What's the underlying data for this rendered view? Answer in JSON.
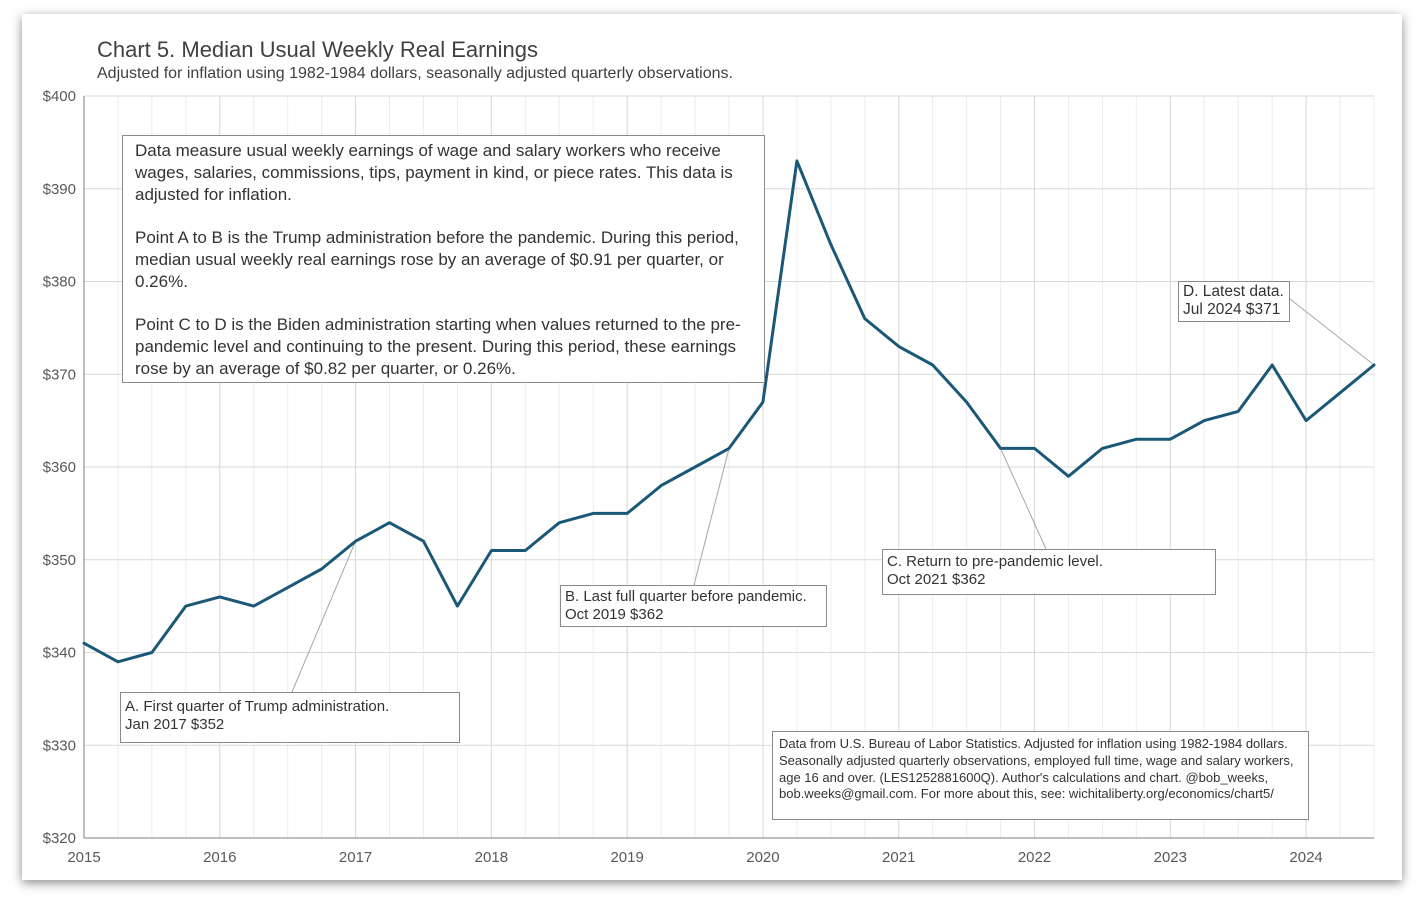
{
  "chart_data": {
    "type": "line",
    "title": "Chart 5. Median Usual Weekly Real Earnings",
    "subtitle": "Adjusted for inflation using 1982-1984 dollars, seasonally adjusted quarterly observations.",
    "xlabel": "",
    "ylabel": "",
    "x_ticks": [
      "2015",
      "2016",
      "2017",
      "2018",
      "2019",
      "2020",
      "2021",
      "2022",
      "2023",
      "2024"
    ],
    "y_ticks": [
      "$320",
      "$330",
      "$340",
      "$350",
      "$360",
      "$370",
      "$380",
      "$390",
      "$400"
    ],
    "ylim": [
      320,
      400
    ],
    "xlim": [
      "2015-01",
      "2024-07"
    ],
    "grid": true,
    "line_color": "#1b5878",
    "series": [
      {
        "name": "",
        "x": [
          "2015-01",
          "2015-04",
          "2015-07",
          "2015-10",
          "2016-01",
          "2016-04",
          "2016-07",
          "2016-10",
          "2017-01",
          "2017-04",
          "2017-07",
          "2017-10",
          "2018-01",
          "2018-04",
          "2018-07",
          "2018-10",
          "2019-01",
          "2019-04",
          "2019-07",
          "2019-10",
          "2020-01",
          "2020-04",
          "2020-07",
          "2020-10",
          "2021-01",
          "2021-04",
          "2021-07",
          "2021-10",
          "2022-01",
          "2022-04",
          "2022-07",
          "2022-10",
          "2023-01",
          "2023-04",
          "2023-07",
          "2023-10",
          "2024-01",
          "2024-04",
          "2024-07"
        ],
        "values": [
          341,
          339,
          340,
          345,
          346,
          345,
          347,
          349,
          352,
          354,
          352,
          345,
          351,
          351,
          354,
          355,
          355,
          358,
          360,
          362,
          367,
          393,
          384,
          376,
          373,
          371,
          367,
          362,
          362,
          359,
          362,
          363,
          363,
          365,
          366,
          371,
          365,
          368,
          371
        ]
      }
    ],
    "annotations": [
      {
        "id": "A",
        "line1": "A. First quarter of Trump  administration.",
        "line2": "Jan 2017  $352",
        "x": "2017-01",
        "y": 352
      },
      {
        "id": "B",
        "line1": "B. Last full  quarter  before pandemic.",
        "line2": "Oct 2019  $362",
        "x": "2019-10",
        "y": 362
      },
      {
        "id": "C",
        "line1": "C. Return  to pre-pandemic level.",
        "line2": "Oct 2021  $362",
        "x": "2021-10",
        "y": 362
      },
      {
        "id": "D",
        "line1": "D. Latest data.",
        "line2": "Jul 2024  $371",
        "x": "2024-07",
        "y": 371
      }
    ]
  },
  "note": {
    "p1": "Data measure usual weekly earnings of wage and salary workers who receive wages, salaries, commissions, tips, payment in kind, or piece rates. This data is adjusted for inflation.",
    "p2": "Point A to B is the Trump administration before the pandemic. During this period, median usual weekly real earnings rose by an average of $0.91 per quarter, or 0.26%.",
    "p3": "Point C to D is the Biden administration starting when values returned to the pre-pandemic level and continuing to the present. During this period, these earnings rose by an average of $0.82 per quarter, or 0.26%."
  },
  "source": "Data from U.S. Bureau of Labor Statistics. Adjusted for inflation using 1982-1984 dollars. Seasonally adjusted quarterly observations, employed full time, wage and salary workers, age 16 and over. (LES1252881600Q). Author's calculations and chart. @bob_weeks, bob.weeks@gmail.com. For more about this, see: wichitaliberty.org/economics/chart5/"
}
